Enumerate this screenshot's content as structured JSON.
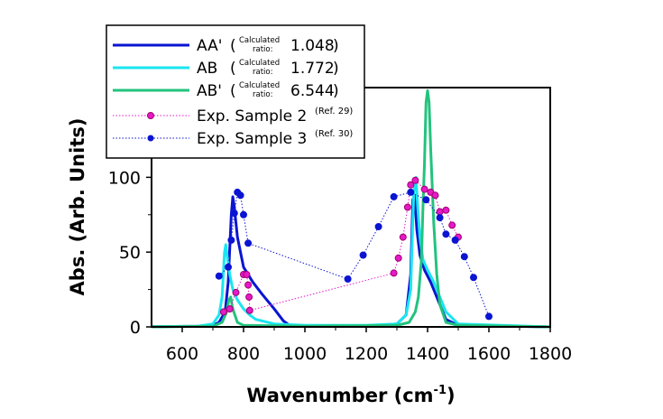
{
  "chart_data": {
    "type": "line",
    "xlabel": "Wavenumber (cm",
    "xlabel_sup": "-1",
    "xlabel_end": ")",
    "ylabel": "Abs. (Arb. Units)",
    "xlim": [
      500,
      1800
    ],
    "ylim": [
      0,
      160
    ],
    "x_ticks": [
      600,
      800,
      1000,
      1200,
      1400,
      1600,
      1800
    ],
    "y_ticks": [
      0,
      50,
      100
    ],
    "legend_position": "top-left",
    "series": [
      {
        "name": "AA'",
        "kind": "line",
        "color": "#0a14d2",
        "calculated_ratio_label": "Calculated",
        "calculated_ratio_label2": "ratio:",
        "calculated_ratio": "1.048",
        "x": [
          500,
          650,
          700,
          720,
          740,
          750,
          760,
          765,
          770,
          780,
          800,
          830,
          860,
          900,
          930,
          950,
          1000,
          1200,
          1300,
          1330,
          1345,
          1352,
          1358,
          1365,
          1375,
          1390,
          1410,
          1440,
          1460,
          1500,
          1800
        ],
        "y": [
          0.2,
          0.5,
          1,
          3,
          10,
          30,
          75,
          87,
          80,
          60,
          40,
          30,
          22,
          12,
          4,
          1,
          0.5,
          0.5,
          2,
          8,
          35,
          85,
          88,
          65,
          48,
          38,
          30,
          15,
          5,
          1,
          0
        ]
      },
      {
        "name": "AB",
        "kind": "line",
        "color": "#19e6f0",
        "calculated_ratio_label": "Calculated",
        "calculated_ratio_label2": "ratio:",
        "calculated_ratio": "1.772",
        "x": [
          500,
          650,
          700,
          720,
          730,
          738,
          742,
          748,
          755,
          765,
          780,
          800,
          820,
          840,
          900,
          1000,
          1200,
          1300,
          1330,
          1345,
          1355,
          1362,
          1368,
          1375,
          1385,
          1400,
          1420,
          1440,
          1460,
          1500,
          1800
        ],
        "y": [
          0.2,
          0.5,
          2,
          8,
          20,
          50,
          55,
          45,
          35,
          25,
          18,
          12,
          8,
          5,
          2,
          1,
          1,
          2,
          8,
          25,
          90,
          100,
          80,
          60,
          45,
          38,
          30,
          20,
          10,
          2,
          0
        ]
      },
      {
        "name": "AB'",
        "kind": "line",
        "color": "#23c37d",
        "calculated_ratio_label": "Calculated",
        "calculated_ratio_label2": "ratio:",
        "calculated_ratio": "6.544",
        "x": [
          500,
          700,
          730,
          745,
          752,
          758,
          765,
          780,
          800,
          1000,
          1300,
          1340,
          1360,
          1370,
          1380,
          1385,
          1390,
          1395,
          1400,
          1405,
          1410,
          1420,
          1430,
          1440,
          1460,
          1500,
          1800
        ],
        "y": [
          0,
          0.5,
          3,
          10,
          18,
          20,
          12,
          3,
          1,
          0.5,
          1,
          3,
          10,
          20,
          45,
          80,
          110,
          150,
          158,
          150,
          120,
          70,
          35,
          15,
          3,
          1,
          0
        ]
      },
      {
        "name": "Exp. Sample 2",
        "ref": "(Ref. 29)",
        "kind": "points",
        "color": "#e619c8",
        "dot": "#a0006e",
        "x": [
          735,
          755,
          775,
          800,
          810,
          815,
          818,
          820,
          1290,
          1305,
          1320,
          1335,
          1345,
          1360,
          1390,
          1410,
          1425,
          1440,
          1460,
          1480,
          1500
        ],
        "y": [
          10,
          12,
          23,
          35,
          35,
          28,
          20,
          11,
          36,
          46,
          60,
          80,
          95,
          98,
          92,
          90,
          88,
          77,
          78,
          68,
          60
        ]
      },
      {
        "name": "Exp. Sample 3",
        "ref": "(Ref. 30)",
        "kind": "points",
        "color": "#0a14d2",
        "dot": "#0a14d2",
        "x": [
          720,
          750,
          760,
          770,
          780,
          790,
          800,
          815,
          1140,
          1190,
          1240,
          1290,
          1345,
          1395,
          1440,
          1460,
          1490,
          1520,
          1550,
          1600
        ],
        "y": [
          34,
          40,
          58,
          76,
          90,
          88,
          75,
          56,
          32,
          48,
          67,
          87,
          90,
          85,
          73,
          62,
          58,
          47,
          33,
          7
        ]
      }
    ]
  }
}
